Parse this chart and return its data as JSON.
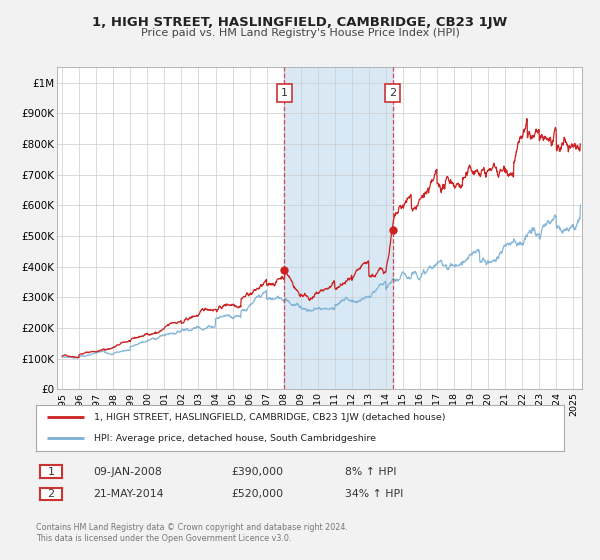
{
  "title": "1, HIGH STREET, HASLINGFIELD, CAMBRIDGE, CB23 1JW",
  "subtitle": "Price paid vs. HM Land Registry's House Price Index (HPI)",
  "background_color": "#f2f2f2",
  "plot_bg_color": "#ffffff",
  "grid_color": "#cccccc",
  "ylim": [
    0,
    1050000
  ],
  "yticks": [
    0,
    100000,
    200000,
    300000,
    400000,
    500000,
    600000,
    700000,
    800000,
    900000,
    1000000
  ],
  "ytick_labels": [
    "£0",
    "£100K",
    "£200K",
    "£300K",
    "£400K",
    "£500K",
    "£600K",
    "£700K",
    "£800K",
    "£900K",
    "£1M"
  ],
  "hpi_color": "#7ab0d4",
  "price_color": "#cc2222",
  "sale1_price": 390000,
  "sale1_label": "09-JAN-2008",
  "sale1_hpi_pct": "8%",
  "sale2_price": 520000,
  "sale2_label": "21-MAY-2014",
  "sale2_hpi_pct": "34%",
  "shade_color": "#d8e8f5",
  "dashed_color": "#cc3333",
  "legend_label1": "1, HIGH STREET, HASLINGFIELD, CAMBRIDGE, CB23 1JW (detached house)",
  "legend_label2": "HPI: Average price, detached house, South Cambridgeshire",
  "footer1": "Contains HM Land Registry data © Crown copyright and database right 2024.",
  "footer2": "This data is licensed under the Open Government Licence v3.0.",
  "xstart": 1994.7,
  "xend": 2025.5,
  "xticks": [
    1995,
    1996,
    1997,
    1998,
    1999,
    2000,
    2001,
    2002,
    2003,
    2004,
    2005,
    2006,
    2007,
    2008,
    2009,
    2010,
    2011,
    2012,
    2013,
    2014,
    2015,
    2016,
    2017,
    2018,
    2019,
    2020,
    2021,
    2022,
    2023,
    2024,
    2025
  ]
}
